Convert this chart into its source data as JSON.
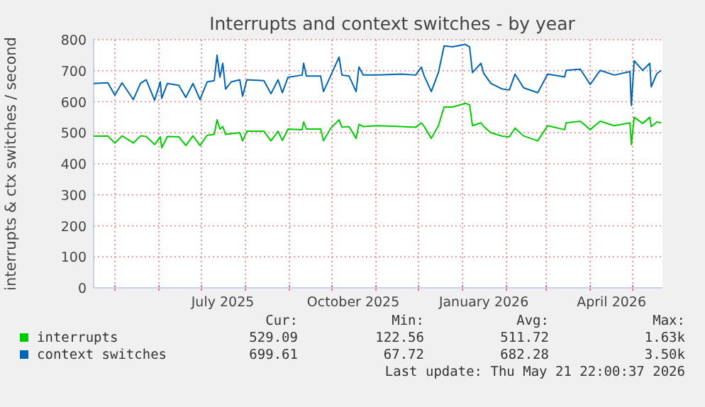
{
  "chart_data": {
    "type": "line",
    "title": "Interrupts and context switches - by year",
    "ylabel": "interrupts & ctx switches / second",
    "x": [
      "2025-04-16",
      "2025-04-26",
      "2025-05-01",
      "2025-05-06",
      "2025-05-14",
      "2025-05-19",
      "2025-05-23",
      "2025-05-29",
      "2025-06-02",
      "2025-06-03",
      "2025-06-07",
      "2025-06-15",
      "2025-06-20",
      "2025-06-25",
      "2025-06-30",
      "2025-07-05",
      "2025-07-10",
      "2025-07-12",
      "2025-07-14",
      "2025-07-16",
      "2025-07-18",
      "2025-07-22",
      "2025-07-28",
      "2025-07-30",
      "2025-08-02",
      "2025-08-14",
      "2025-08-19",
      "2025-08-24",
      "2025-08-27",
      "2025-08-31",
      "2025-09-10",
      "2025-09-11",
      "2025-09-13",
      "2025-09-23",
      "2025-09-25",
      "2025-09-30",
      "2025-10-06",
      "2025-10-08",
      "2025-10-13",
      "2025-10-18",
      "2025-10-20",
      "2025-10-23",
      "2025-11-02",
      "2025-11-19",
      "2025-11-29",
      "2025-12-03",
      "2025-12-05",
      "2025-12-10",
      "2025-12-15",
      "2025-12-19",
      "2025-12-25",
      "2026-01-03",
      "2026-01-06",
      "2026-01-08",
      "2026-01-14",
      "2026-01-16",
      "2026-01-21",
      "2026-01-29",
      "2026-02-03",
      "2026-02-07",
      "2026-02-13",
      "2026-02-23",
      "2026-03-02",
      "2026-03-14",
      "2026-03-15",
      "2026-03-25",
      "2026-04-01",
      "2026-04-08",
      "2026-04-18",
      "2026-04-29",
      "2026-04-30",
      "2026-05-02",
      "2026-05-08",
      "2026-05-13",
      "2026-05-14",
      "2026-05-18",
      "2026-05-21"
    ],
    "series": [
      {
        "name": "interrupts",
        "color": "#00cc00",
        "values": [
          489,
          490,
          467,
          490,
          467,
          490,
          488,
          462,
          487,
          452,
          488,
          487,
          459,
          490,
          459,
          492,
          495,
          542,
          512,
          520,
          495,
          497,
          500,
          474,
          505,
          505,
          474,
          505,
          475,
          512,
          510,
          535,
          512,
          512,
          474,
          514,
          542,
          518,
          520,
          482,
          527,
          520,
          523,
          520,
          518,
          532,
          520,
          482,
          523,
          583,
          583,
          595,
          590,
          523,
          532,
          520,
          500,
          489,
          487,
          515,
          490,
          474,
          523,
          510,
          532,
          537,
          510,
          537,
          523,
          532,
          462,
          550,
          530,
          550,
          520,
          535,
          532
        ]
      },
      {
        "name": "context switches",
        "color": "#0066b3",
        "values": [
          659,
          661,
          621,
          661,
          607,
          659,
          671,
          605,
          664,
          611,
          659,
          653,
          614,
          659,
          607,
          664,
          668,
          750,
          679,
          724,
          641,
          664,
          671,
          618,
          671,
          668,
          626,
          671,
          629,
          679,
          686,
          724,
          683,
          683,
          633,
          683,
          744,
          686,
          683,
          633,
          712,
          686,
          686,
          689,
          686,
          712,
          683,
          633,
          694,
          780,
          777,
          785,
          777,
          694,
          724,
          691,
          659,
          641,
          638,
          689,
          645,
          629,
          689,
          680,
          701,
          705,
          656,
          701,
          686,
          697,
          588,
          732,
          701,
          724,
          648,
          691,
          701
        ]
      }
    ],
    "xlim": [
      "2025-04-16",
      "2026-05-21T22:00"
    ],
    "xticks": [
      {
        "value": "2025-05-01",
        "label": null
      },
      {
        "value": "2025-06-01",
        "label": null
      },
      {
        "value": "2025-07-01",
        "label": null
      },
      {
        "value": "2025-07-16",
        "label": "July 2025"
      },
      {
        "value": "2025-08-01",
        "label": null
      },
      {
        "value": "2025-09-01",
        "label": null
      },
      {
        "value": "2025-10-01",
        "label": null
      },
      {
        "value": "2025-10-16",
        "label": "October 2025"
      },
      {
        "value": "2025-11-01",
        "label": null
      },
      {
        "value": "2025-12-01",
        "label": null
      },
      {
        "value": "2026-01-01",
        "label": null
      },
      {
        "value": "2026-01-16",
        "label": "January 2026"
      },
      {
        "value": "2026-02-01",
        "label": null
      },
      {
        "value": "2026-03-01",
        "label": null
      },
      {
        "value": "2026-04-01",
        "label": null
      },
      {
        "value": "2026-04-16",
        "label": "April 2026"
      },
      {
        "value": "2026-05-01",
        "label": null
      }
    ],
    "ylim": [
      0,
      800
    ],
    "yticks": [
      0,
      100,
      200,
      300,
      400,
      500,
      600,
      700,
      800
    ],
    "grid": true,
    "legend": "bottom",
    "line_style": "solid",
    "marker": "none",
    "annotations": [
      "Cur:",
      "Min:",
      "Avg:",
      "Max:",
      "529.09",
      "122.56",
      "511.72",
      "1.63k",
      "699.61",
      "67.72",
      "682.28",
      "3.50k",
      "Last update: Thu May 21 22:00:37 2026"
    ]
  }
}
